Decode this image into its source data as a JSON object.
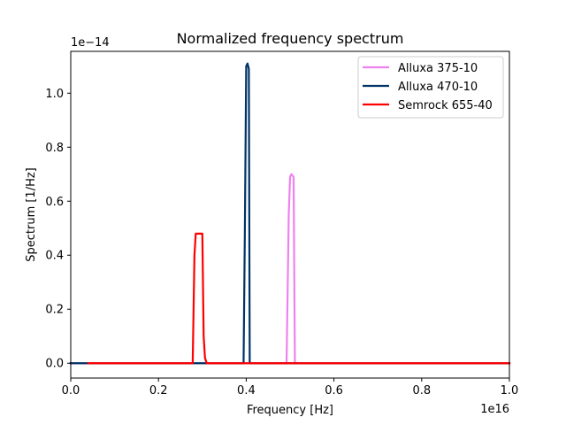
{
  "chart_data": {
    "type": "line",
    "title": "Normalized frequency spectrum",
    "xlabel": "Frequency [Hz]",
    "ylabel": "Spectrum [1/Hz]",
    "x_offset_label": "1e16",
    "y_offset_label": "1e−14",
    "xlim": [
      0.0,
      1.0
    ],
    "ylim": [
      -0.055,
      1.155
    ],
    "x_ticks": [
      {
        "value": 0.0,
        "label": "0.0"
      },
      {
        "value": 0.2,
        "label": "0.2"
      },
      {
        "value": 0.4,
        "label": "0.4"
      },
      {
        "value": 0.6,
        "label": "0.6"
      },
      {
        "value": 0.8,
        "label": "0.8"
      },
      {
        "value": 1.0,
        "label": "1.0"
      }
    ],
    "y_ticks": [
      {
        "value": 0.0,
        "label": "0.0"
      },
      {
        "value": 0.2,
        "label": "0.2"
      },
      {
        "value": 0.4,
        "label": "0.4"
      },
      {
        "value": 0.6,
        "label": "0.6"
      },
      {
        "value": 0.8,
        "label": "0.8"
      },
      {
        "value": 1.0,
        "label": "1.0"
      }
    ],
    "grid": false,
    "legend_position": "upper right",
    "series": [
      {
        "name": "Alluxa 375-10",
        "color": "#ee82ee",
        "x": [
          0.0,
          0.492,
          0.497,
          0.5,
          0.503,
          0.508,
          0.511,
          1.0
        ],
        "y": [
          0.0,
          0.0,
          0.55,
          0.69,
          0.7,
          0.69,
          0.0,
          0.0
        ]
      },
      {
        "name": "Alluxa 470-10",
        "color": "#003366",
        "x": [
          0.0,
          0.394,
          0.397,
          0.4,
          0.403,
          0.406,
          0.408,
          1.0
        ],
        "y": [
          0.0,
          0.0,
          0.5,
          1.1,
          1.11,
          1.09,
          0.0,
          0.0
        ]
      },
      {
        "name": "Semrock 655-40",
        "color": "#ff0000",
        "x": [
          0.04,
          0.278,
          0.282,
          0.285,
          0.288,
          0.3,
          0.303,
          0.306,
          0.31,
          1.0
        ],
        "y": [
          0.0,
          0.0,
          0.4,
          0.48,
          0.48,
          0.48,
          0.1,
          0.02,
          0.0,
          0.0
        ]
      }
    ]
  }
}
